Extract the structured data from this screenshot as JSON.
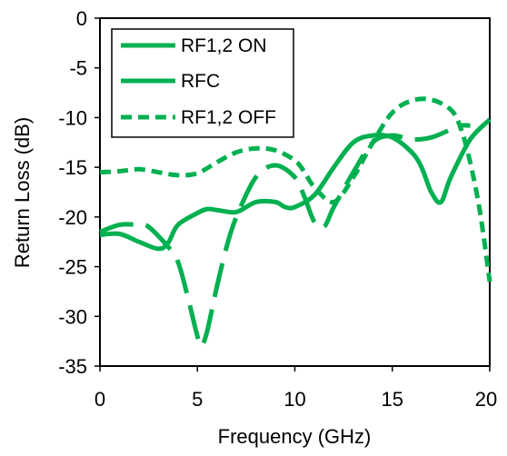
{
  "chart_data": {
    "type": "line",
    "title": "",
    "xlabel": "Frequency (GHz)",
    "ylabel": "Return Loss  (dB)",
    "xlim": [
      0,
      20
    ],
    "ylim": [
      -35,
      0
    ],
    "xticks": [
      "0",
      "5",
      "10",
      "15",
      "20"
    ],
    "yticks": [
      "0",
      "-5",
      "-10",
      "-15",
      "-20",
      "-25",
      "-30",
      "-35"
    ],
    "grid": false,
    "legend_position": "top-left",
    "colors": {
      "series": "#00b050",
      "axis": "#000000"
    },
    "series": [
      {
        "name": "RF1,2 ON",
        "style": "solid",
        "x": [
          0,
          1,
          2,
          3,
          3.5,
          4,
          5,
          5.5,
          6,
          7,
          8,
          9,
          9.5,
          10,
          11,
          12,
          13,
          14,
          15,
          16,
          16.5,
          17,
          17.5,
          18,
          19,
          20
        ],
        "y": [
          -21.8,
          -21.7,
          -22.5,
          -23.2,
          -22.6,
          -20.8,
          -19.6,
          -19.2,
          -19.3,
          -19.5,
          -18.5,
          -18.5,
          -19.0,
          -19.0,
          -17.8,
          -15.0,
          -12.5,
          -11.8,
          -12.0,
          -13.5,
          -15.0,
          -17.5,
          -18.5,
          -16.0,
          -12.2,
          -10.2
        ]
      },
      {
        "name": "RFC",
        "style": "long-dash",
        "x": [
          0,
          1,
          2,
          2.5,
          3.5,
          4,
          4.5,
          5,
          5.2,
          5.5,
          6,
          6.5,
          7,
          8,
          9,
          10,
          10.5,
          11,
          11.5,
          12,
          13,
          14,
          15,
          16,
          17,
          18,
          18.5,
          19
        ],
        "y": [
          -21.5,
          -20.8,
          -20.8,
          -21.0,
          -23.0,
          -24.5,
          -28.0,
          -32.0,
          -33.0,
          -31.5,
          -27.0,
          -23.0,
          -20.0,
          -16.0,
          -14.8,
          -16.0,
          -18.0,
          -20.5,
          -21.0,
          -19.0,
          -15.5,
          -12.5,
          -11.8,
          -12.2,
          -12.0,
          -11.2,
          -10.8,
          -10.8
        ]
      },
      {
        "name": "RF1,2 OFF",
        "style": "short-dash",
        "x": [
          0,
          1,
          2,
          3,
          4,
          5,
          6,
          7,
          8,
          9,
          10,
          10.5,
          11,
          12,
          13,
          14,
          15,
          16,
          17,
          18,
          18.5,
          19,
          19.5,
          20
        ],
        "y": [
          -15.5,
          -15.4,
          -15.2,
          -15.5,
          -15.8,
          -15.6,
          -14.5,
          -13.5,
          -13.1,
          -13.3,
          -14.3,
          -15.5,
          -17.0,
          -18.5,
          -16.0,
          -12.5,
          -9.5,
          -8.3,
          -8.2,
          -9.2,
          -11.0,
          -14.5,
          -19.5,
          -26.5
        ]
      }
    ]
  }
}
